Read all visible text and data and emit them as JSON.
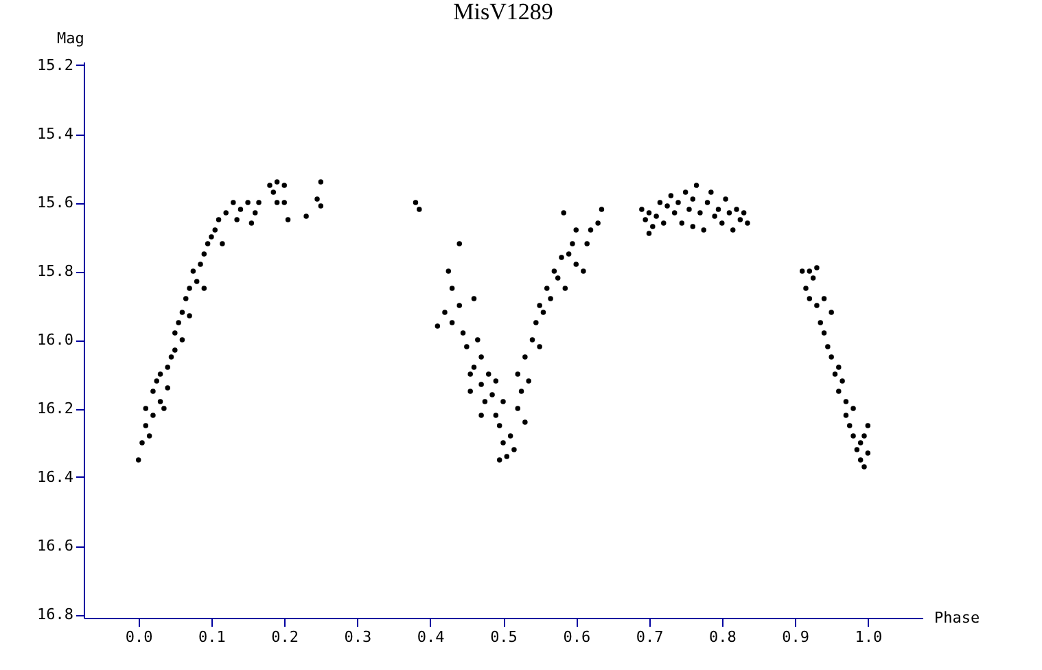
{
  "chart_data": {
    "type": "scatter",
    "title": "MisV1289",
    "xlabel": "Phase",
    "ylabel": "Mag",
    "xlim": [
      -0.075,
      1.075
    ],
    "ylim": [
      16.81,
      15.19
    ],
    "xticks": [
      {
        "value": 0,
        "label": "0.0"
      },
      0.1,
      0.2,
      0.3,
      0.4,
      0.5,
      0.6,
      0.7,
      0.8,
      0.9,
      {
        "value": 1,
        "label": "1.0"
      }
    ],
    "yticks": [
      15.2,
      15.4,
      15.6,
      15.8,
      {
        "value": 16,
        "label": "16.0"
      },
      16.2,
      16.4,
      16.6,
      16.8
    ],
    "grid": false,
    "marker": "circle",
    "series": [
      {
        "color": "#000000",
        "x": [
          0.0,
          0.005,
          0.01,
          0.01,
          0.015,
          0.02,
          0.02,
          0.025,
          0.03,
          0.03,
          0.035,
          0.04,
          0.04,
          0.045,
          0.05,
          0.05,
          0.055,
          0.06,
          0.06,
          0.065,
          0.07,
          0.07,
          0.075,
          0.08,
          0.085,
          0.09,
          0.09,
          0.095,
          0.1,
          0.105,
          0.11,
          0.115,
          0.12,
          0.13,
          0.135,
          0.14,
          0.15,
          0.155,
          0.16,
          0.165,
          0.18,
          0.185,
          0.19,
          0.19,
          0.2,
          0.2,
          0.205,
          0.23,
          0.245,
          0.25,
          0.25,
          0.38,
          0.385,
          0.41,
          0.42,
          0.425,
          0.43,
          0.43,
          0.44,
          0.44,
          0.445,
          0.45,
          0.455,
          0.455,
          0.46,
          0.46,
          0.465,
          0.47,
          0.47,
          0.47,
          0.475,
          0.48,
          0.485,
          0.49,
          0.49,
          0.495,
          0.495,
          0.5,
          0.5,
          0.505,
          0.51,
          0.515,
          0.52,
          0.52,
          0.525,
          0.53,
          0.53,
          0.535,
          0.54,
          0.545,
          0.55,
          0.55,
          0.555,
          0.56,
          0.565,
          0.57,
          0.575,
          0.58,
          0.583,
          0.585,
          0.59,
          0.595,
          0.6,
          0.6,
          0.61,
          0.615,
          0.62,
          0.63,
          0.635,
          0.69,
          0.695,
          0.7,
          0.7,
          0.705,
          0.71,
          0.715,
          0.72,
          0.725,
          0.73,
          0.735,
          0.74,
          0.745,
          0.75,
          0.755,
          0.76,
          0.76,
          0.765,
          0.77,
          0.775,
          0.78,
          0.785,
          0.79,
          0.795,
          0.8,
          0.805,
          0.81,
          0.815,
          0.82,
          0.825,
          0.83,
          0.835,
          0.91,
          0.915,
          0.92,
          0.92,
          0.925,
          0.93,
          0.93,
          0.935,
          0.94,
          0.94,
          0.945,
          0.95,
          0.95,
          0.955,
          0.96,
          0.96,
          0.965,
          0.97,
          0.97,
          0.975,
          0.98,
          0.98,
          0.985,
          0.99,
          0.99,
          0.995,
          0.995,
          1.0,
          1.0
        ],
        "values": [
          16.35,
          16.3,
          16.25,
          16.2,
          16.28,
          16.15,
          16.22,
          16.12,
          16.18,
          16.1,
          16.2,
          16.08,
          16.14,
          16.05,
          15.98,
          16.03,
          15.95,
          15.92,
          16.0,
          15.88,
          15.85,
          15.93,
          15.8,
          15.83,
          15.78,
          15.75,
          15.85,
          15.72,
          15.7,
          15.68,
          15.65,
          15.72,
          15.63,
          15.6,
          15.65,
          15.62,
          15.6,
          15.66,
          15.63,
          15.6,
          15.55,
          15.57,
          15.54,
          15.6,
          15.55,
          15.6,
          15.65,
          15.64,
          15.59,
          15.61,
          15.54,
          15.6,
          15.62,
          15.96,
          15.92,
          15.8,
          15.95,
          15.85,
          15.72,
          15.9,
          15.98,
          16.02,
          16.1,
          16.15,
          15.88,
          16.08,
          16.0,
          16.13,
          16.05,
          16.22,
          16.18,
          16.1,
          16.16,
          16.22,
          16.12,
          16.25,
          16.35,
          16.3,
          16.18,
          16.34,
          16.28,
          16.32,
          16.2,
          16.1,
          16.15,
          16.05,
          16.24,
          16.12,
          16.0,
          15.95,
          16.02,
          15.9,
          15.92,
          15.85,
          15.88,
          15.8,
          15.82,
          15.76,
          15.63,
          15.85,
          15.75,
          15.72,
          15.78,
          15.68,
          15.8,
          15.72,
          15.68,
          15.66,
          15.62,
          15.62,
          15.65,
          15.63,
          15.69,
          15.67,
          15.64,
          15.6,
          15.66,
          15.61,
          15.58,
          15.63,
          15.6,
          15.66,
          15.57,
          15.62,
          15.59,
          15.67,
          15.55,
          15.63,
          15.68,
          15.6,
          15.57,
          15.64,
          15.62,
          15.66,
          15.59,
          15.63,
          15.68,
          15.62,
          15.65,
          15.63,
          15.66,
          15.8,
          15.85,
          15.8,
          15.88,
          15.82,
          15.79,
          15.9,
          15.95,
          15.88,
          15.98,
          16.02,
          16.05,
          15.92,
          16.1,
          16.08,
          16.15,
          16.12,
          16.18,
          16.22,
          16.25,
          16.28,
          16.2,
          16.32,
          16.3,
          16.35,
          16.28,
          16.37,
          16.33,
          16.25
        ]
      }
    ]
  }
}
